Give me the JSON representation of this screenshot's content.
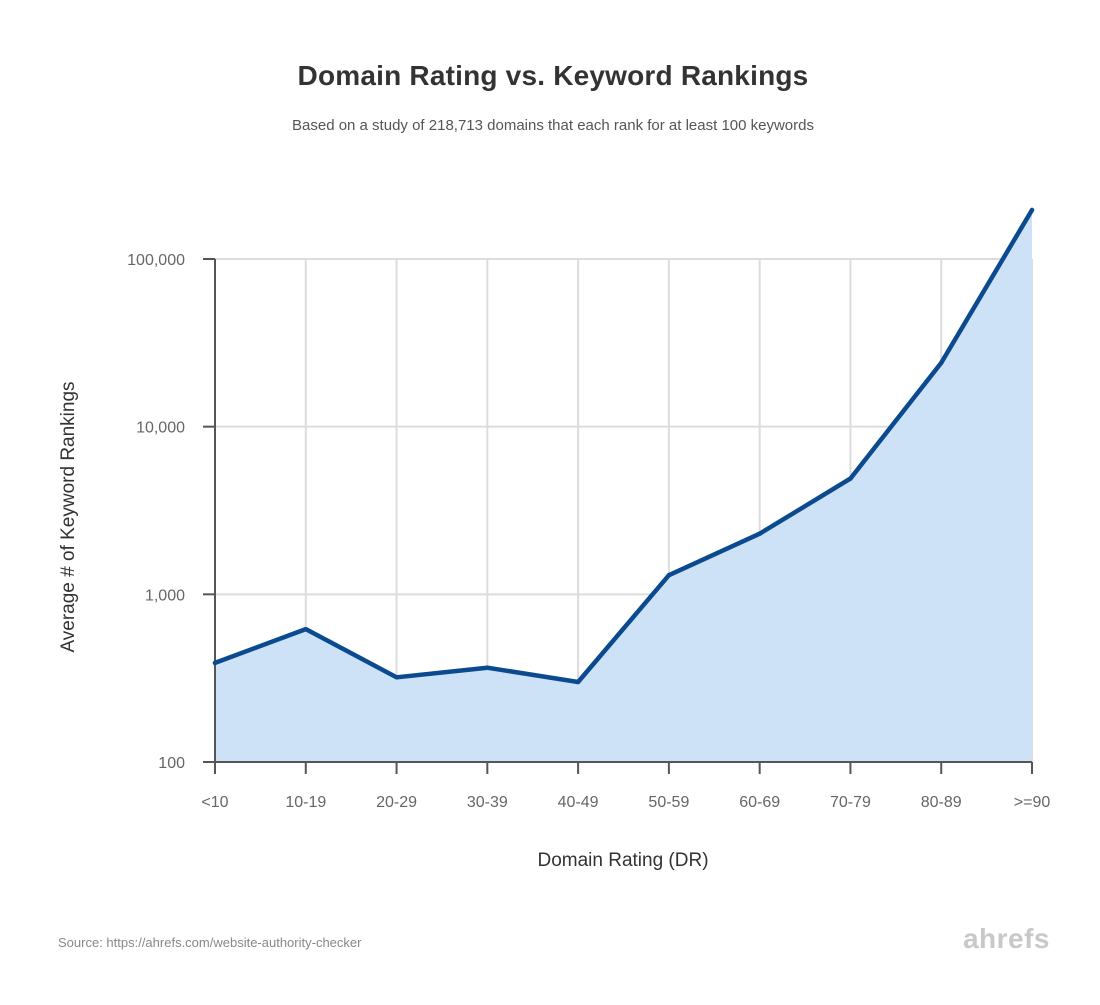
{
  "title": "Domain Rating vs. Keyword Rankings",
  "subtitle": "Based on a study of 218,713 domains that each rank for at least 100 keywords",
  "source": "Source: https://ahrefs.com/website-authority-checker",
  "logo": "ahrefs",
  "colors": {
    "line": "#0b4a8f",
    "fill": "#cde2f6",
    "grid": "#dcdcdc",
    "axis": "#555555"
  },
  "chart_data": {
    "type": "area",
    "title": "Domain Rating vs. Keyword Rankings",
    "subtitle": "Based on a study of 218,713 domains that each rank for at least 100 keywords",
    "xlabel": "Domain Rating (DR)",
    "ylabel": "Average # of Keyword Rankings",
    "yscale": "log",
    "ylim": [
      100,
      100000
    ],
    "yticks": [
      100,
      1000,
      10000,
      100000
    ],
    "ytick_labels": [
      "100",
      "1,000",
      "10,000",
      "100,000"
    ],
    "grid": true,
    "categories": [
      "<10",
      "10-19",
      "20-29",
      "30-39",
      "40-49",
      "50-59",
      "60-69",
      "70-79",
      "80-89",
      ">=90"
    ],
    "values": [
      390,
      620,
      320,
      365,
      300,
      1300,
      2300,
      4900,
      24000,
      200000
    ]
  }
}
